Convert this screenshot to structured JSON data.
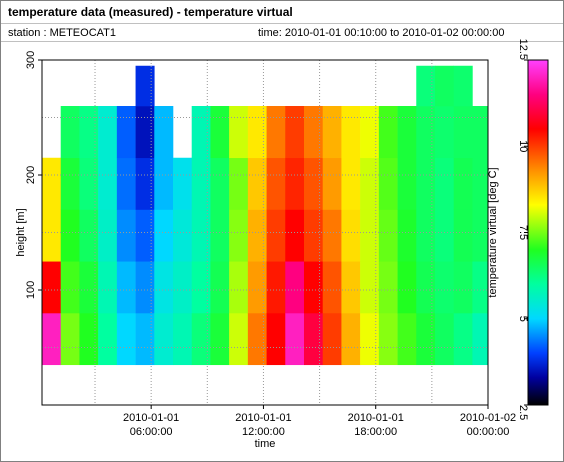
{
  "header": {
    "title": "temperature data (measured) - temperature virtual",
    "station": "station : METEOCAT1",
    "time": "time: 2010-01-01 00:10:00 to 2010-01-02 00:00:00"
  },
  "chart_data": {
    "type": "heatmap",
    "xlabel": "time",
    "ylabel": "height [m]",
    "colorbar_label": "temperature virtual [deg C]",
    "xlim": [
      "2010-01-01 00:10:00",
      "2010-01-02 00:00:00"
    ],
    "xticks": [
      "2010-01-01 06:00:00",
      "2010-01-01 12:00:00",
      "2010-01-01 18:00:00",
      "2010-01-02 00:00:00"
    ],
    "xgrid": [
      "2010-01-01 03:00:00",
      "2010-01-01 06:00:00",
      "2010-01-01 09:00:00",
      "2010-01-01 12:00:00",
      "2010-01-01 15:00:00",
      "2010-01-01 18:00:00",
      "2010-01-01 21:00:00"
    ],
    "ylim": [
      0,
      300
    ],
    "yticks": [
      100,
      200,
      300
    ],
    "ygrid": [
      50,
      100,
      150,
      200,
      250
    ],
    "zlim": [
      2.5,
      12.5
    ],
    "zticks": [
      2.5,
      5,
      7.5,
      10,
      12.5
    ],
    "colorscale": [
      [
        2.5,
        "#000000"
      ],
      [
        3.3,
        "#0000a0"
      ],
      [
        4,
        "#0040ff"
      ],
      [
        5,
        "#00d8ff"
      ],
      [
        6,
        "#00ffa0"
      ],
      [
        7,
        "#20ff20"
      ],
      [
        8.3,
        "#ffff00"
      ],
      [
        9.3,
        "#ff9000"
      ],
      [
        10.5,
        "#ff0000"
      ],
      [
        11.5,
        "#ff0080"
      ],
      [
        12.5,
        "#ff40ff"
      ]
    ],
    "x_edges": [
      "2010-01-01 00:10:00",
      "2010-01-01 01:10:00",
      "2010-01-01 02:10:00",
      "2010-01-01 03:10:00",
      "2010-01-01 04:10:00",
      "2010-01-01 05:10:00",
      "2010-01-01 06:10:00",
      "2010-01-01 07:10:00",
      "2010-01-01 08:10:00",
      "2010-01-01 09:10:00",
      "2010-01-01 10:10:00",
      "2010-01-01 11:10:00",
      "2010-01-01 12:10:00",
      "2010-01-01 13:10:00",
      "2010-01-01 14:10:00",
      "2010-01-01 15:10:00",
      "2010-01-01 16:10:00",
      "2010-01-01 17:10:00",
      "2010-01-01 18:10:00",
      "2010-01-01 19:10:00",
      "2010-01-01 20:10:00",
      "2010-01-01 21:10:00",
      "2010-01-01 22:10:00",
      "2010-01-01 23:10:00",
      "2010-01-02 00:00:00"
    ],
    "y_edges": [
      35,
      80,
      125,
      170,
      215,
      260,
      295
    ],
    "z": [
      [
        12,
        10.5,
        8.5,
        8.5,
        null,
        null
      ],
      [
        7.5,
        7.2,
        7,
        6.8,
        6.5,
        null
      ],
      [
        7,
        6.8,
        6.5,
        6.3,
        6.2,
        null
      ],
      [
        6,
        5.8,
        5.6,
        5.5,
        5.5,
        null
      ],
      [
        5,
        4.8,
        4.5,
        4.3,
        4.2,
        null
      ],
      [
        4.8,
        4.5,
        4.2,
        3.8,
        3.5,
        3.8
      ],
      [
        5.5,
        5.3,
        5,
        4.8,
        4.8,
        null
      ],
      [
        5.8,
        5.6,
        5.4,
        5.2,
        null,
        null
      ],
      [
        6.3,
        6,
        5.8,
        5.8,
        5.8,
        null
      ],
      [
        6.8,
        6.6,
        6.5,
        6.5,
        6.8,
        null
      ],
      [
        8,
        7.8,
        7.6,
        7.5,
        8,
        null
      ],
      [
        9.5,
        9.2,
        9,
        8.8,
        8.5,
        null
      ],
      [
        10.5,
        10.3,
        10,
        9.8,
        9.5,
        null
      ],
      [
        12,
        11.5,
        10.5,
        10.2,
        10,
        null
      ],
      [
        11,
        10.5,
        10,
        9.8,
        9.5,
        null
      ],
      [
        10,
        9.8,
        9.5,
        9.2,
        9,
        null
      ],
      [
        9,
        8.8,
        8.6,
        8.5,
        8.5,
        null
      ],
      [
        8.2,
        8,
        8,
        8,
        8.2,
        null
      ],
      [
        7.6,
        7.5,
        7.4,
        7.3,
        7.2,
        null
      ],
      [
        7.2,
        7,
        6.9,
        6.8,
        6.8,
        null
      ],
      [
        6.8,
        6.6,
        6.5,
        6.5,
        6.5,
        6.3
      ],
      [
        6.5,
        6.4,
        6.3,
        6.3,
        6.4,
        6.5
      ],
      [
        6.2,
        6.5,
        6.6,
        6.6,
        6.5,
        6.4
      ],
      [
        5.8,
        6.2,
        6.5,
        6.5,
        6.5,
        null
      ]
    ]
  }
}
